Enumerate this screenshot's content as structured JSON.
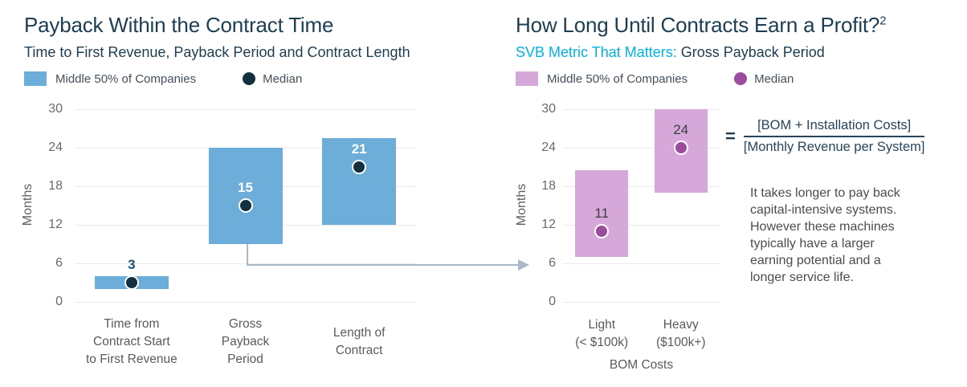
{
  "left_panel": {
    "title": "Payback Within the Contract Time",
    "subtitle": "Time to First Revenue, Payback Period and Contract Length",
    "legend": {
      "range_label": "Middle 50% of Companies",
      "median_label": "Median"
    }
  },
  "right_panel": {
    "title": "How Long Until Contracts Earn a Profit?",
    "title_superscript": "2",
    "subtitle_highlight": "SVB Metric That Matters:",
    "subtitle_rest": " Gross Payback Period",
    "legend": {
      "range_label": "Middle 50% of Companies",
      "median_label": "Median"
    },
    "formula": {
      "equals_sign": "=",
      "numerator": "[BOM + Installation Costs]",
      "denominator": "[Monthly Revenue per System]"
    },
    "note": "It takes longer to pay back capital-intensive systems. However these machines typically have a larger earning potential and a longer service life."
  },
  "colors": {
    "title_navy": "#1d3d52",
    "cyan_accent": "#00b2e3",
    "blue_bar": "#6dadd9",
    "navy_median_dot": "#12303f",
    "purple_bar": "#d6a7d9",
    "purple_median_dot": "#9c4c9c",
    "gridline": "#eaeaea",
    "axis_text_gray": "#6b6b6b",
    "body_text_gray": "#4c4c4c",
    "connector_arrow": "#aab9c8"
  },
  "chart_data": [
    {
      "type": "bar",
      "subtype": "floating_range_bar_with_median",
      "title": "Payback Within the Contract Time",
      "subtitle": "Time to First Revenue, Payback Period and Contract Length",
      "ylabel": "Months",
      "xlabel": "",
      "ylim": [
        0,
        30
      ],
      "yticks": [
        0,
        6,
        12,
        18,
        24,
        30
      ],
      "grid": true,
      "legend_position": "top-left",
      "categories": [
        "Time from Contract Start to First Revenue",
        "Gross Payback Period",
        "Length of Contract"
      ],
      "categories_display": [
        [
          "Time from",
          "Contract Start",
          "to First Revenue"
        ],
        [
          "Gross",
          "Payback",
          "Period"
        ],
        [
          "Length of",
          "Contract"
        ]
      ],
      "series": [
        {
          "name": "Middle 50% of Companies",
          "type": "range",
          "low": [
            2,
            9,
            12
          ],
          "high": [
            4,
            24,
            25.5
          ]
        },
        {
          "name": "Median",
          "type": "point",
          "values": [
            3,
            15,
            21
          ]
        }
      ],
      "value_labels": [
        "3",
        "15",
        "21"
      ],
      "bar_color": "#6dadd9",
      "median_color": "#12303f",
      "label_color_inside": "#ffffff",
      "label_color_outside": "#1d5174",
      "value_label_bold": true
    },
    {
      "type": "bar",
      "subtype": "floating_range_bar_with_median",
      "title": "How Long Until Contracts Earn a Profit?",
      "subtitle": "SVB Metric That Matters: Gross Payback Period",
      "ylabel": "Months",
      "xlabel": "BOM Costs",
      "ylim": [
        0,
        30
      ],
      "yticks": [
        0,
        6,
        12,
        18,
        24,
        30
      ],
      "grid": true,
      "legend_position": "top-left",
      "categories": [
        "Light (< $100k)",
        "Heavy ($100k+)"
      ],
      "categories_display": [
        [
          "Light",
          "(< $100k)"
        ],
        [
          "Heavy",
          "($100k+)"
        ]
      ],
      "series": [
        {
          "name": "Middle 50% of Companies",
          "type": "range",
          "low": [
            7,
            17
          ],
          "high": [
            20.5,
            30
          ]
        },
        {
          "name": "Median",
          "type": "point",
          "values": [
            11,
            24
          ]
        }
      ],
      "value_labels": [
        "11",
        "24"
      ],
      "bar_color": "#d6a7d9",
      "median_color": "#9c4c9c",
      "label_color_inside": "#3f3f3f",
      "label_color_outside": "#3f3f3f",
      "value_label_bold": false
    }
  ]
}
